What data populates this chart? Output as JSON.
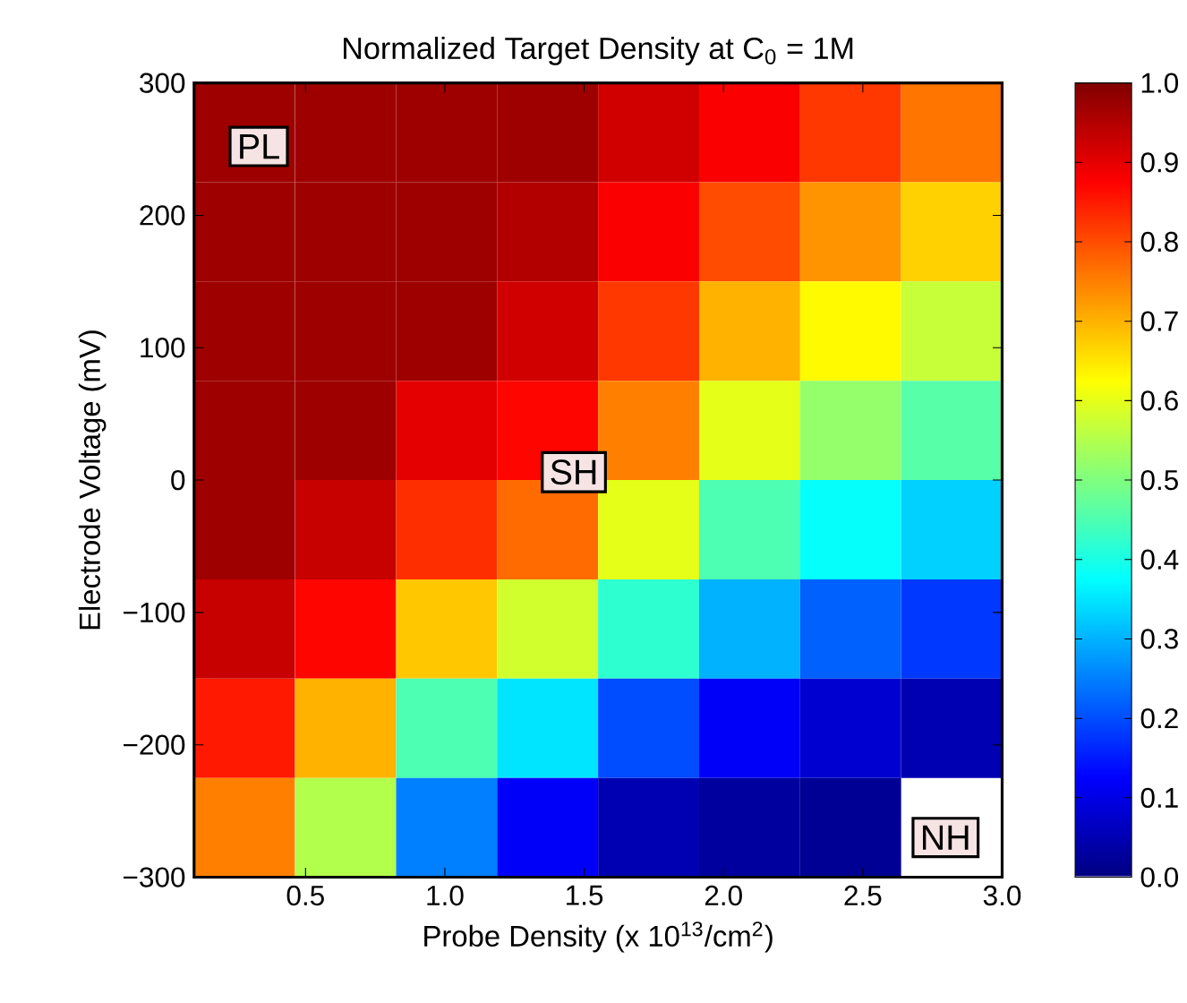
{
  "chart_data": {
    "type": "heatmap",
    "title": "Normalized Target Density at C$_{0}$ = 1M",
    "xlabel": "Probe Density (x 10$^{13}$/cm$^{2}$)",
    "ylabel": "Electrode Voltage (mV)",
    "x": [
      0.28125,
      0.64375,
      1.00625,
      1.36875,
      1.73125,
      2.09375,
      2.45625,
      2.81875
    ],
    "y": [
      262.5,
      187.5,
      112.5,
      37.5,
      -37.5,
      -112.5,
      -187.5,
      -262.5
    ],
    "xlim": [
      0.1,
      3.0
    ],
    "xticks": [
      0.5,
      {
        "value": 1,
        "label": "1.0"
      },
      1.5,
      {
        "value": 2,
        "label": "2.0"
      },
      2.5,
      {
        "value": 3,
        "label": "3.0"
      }
    ],
    "ylim": [
      -300,
      300
    ],
    "yticks": [
      {
        "value": -300,
        "label": "−300"
      },
      {
        "value": -200,
        "label": "−200"
      },
      {
        "value": -100,
        "label": "−100"
      },
      0,
      100,
      200,
      300
    ],
    "cells": [
      [
        0.97,
        0.97,
        0.97,
        0.97,
        0.92,
        0.88,
        0.82,
        0.76
      ],
      [
        0.97,
        0.97,
        0.97,
        0.95,
        0.88,
        0.8,
        0.73,
        0.67
      ],
      [
        0.97,
        0.97,
        0.97,
        0.92,
        0.82,
        0.7,
        0.63,
        0.57
      ],
      [
        0.97,
        0.97,
        0.9,
        0.87,
        0.75,
        0.6,
        0.52,
        0.46
      ],
      [
        0.97,
        0.93,
        0.83,
        0.77,
        0.6,
        0.45,
        0.38,
        0.33
      ],
      [
        0.93,
        0.87,
        0.68,
        0.58,
        0.42,
        0.3,
        0.22,
        0.18
      ],
      [
        0.85,
        0.7,
        0.45,
        0.35,
        0.2,
        0.12,
        0.08,
        0.05
      ],
      [
        0.75,
        0.55,
        0.25,
        0.12,
        0.05,
        0.03,
        0.02,
        null
      ]
    ],
    "clim": [
      0,
      1
    ],
    "cticks": [
      {
        "value": 0,
        "label": "0.0"
      },
      0.1,
      0.2,
      0.3,
      0.4,
      0.5,
      0.6,
      0.7,
      0.8,
      0.9,
      {
        "value": 1,
        "label": "1.0"
      }
    ],
    "annotations": [
      "PL",
      "SH",
      "NH"
    ]
  }
}
